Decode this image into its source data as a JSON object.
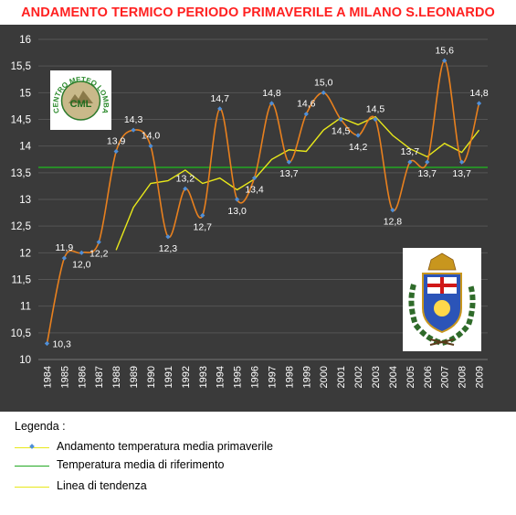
{
  "title": "ANDAMENTO TERMICO PERIODO PRIMAVERILE A MILANO S.LEONARDO",
  "logo": {
    "text_top": "CENTRO METEO LOMBARDO",
    "initials": "CML"
  },
  "colors": {
    "background": "#3a3a3a",
    "main_series": "#e8801e",
    "marker": "#4f8fd8",
    "reference": "#22a822",
    "trend": "#e8e81a",
    "title": "#ff2020"
  },
  "legend": {
    "title": "Legenda :",
    "items": [
      {
        "label": "Andamento temperatura media primaverile"
      },
      {
        "label": "Temperatura media di riferimento"
      },
      {
        "label": "Linea di tendenza"
      }
    ]
  },
  "chart_data": {
    "type": "line",
    "title": "ANDAMENTO TERMICO PERIODO PRIMAVERILE A MILANO S.LEONARDO",
    "xlabel": "",
    "ylabel": "",
    "ylim": [
      10,
      16
    ],
    "ytick_step": 0.5,
    "grid": true,
    "legend_position": "bottom",
    "categories": [
      "1984",
      "1985",
      "1986",
      "1987",
      "1988",
      "1989",
      "1990",
      "1991",
      "1992",
      "1993",
      "1994",
      "1995",
      "1996",
      "1997",
      "1998",
      "1999",
      "2000",
      "2001",
      "2002",
      "2003",
      "2004",
      "2005",
      "2006",
      "2007",
      "2008",
      "2009"
    ],
    "series": [
      {
        "name": "Andamento temperatura media primaverile",
        "values": [
          10.3,
          11.9,
          12.0,
          12.2,
          13.9,
          14.3,
          14.0,
          12.3,
          13.2,
          12.7,
          14.7,
          13.0,
          13.4,
          14.8,
          13.7,
          14.6,
          15.0,
          14.5,
          14.2,
          14.5,
          12.8,
          13.7,
          13.7,
          15.6,
          13.7,
          14.8
        ],
        "labels": [
          "10,3",
          "11,9",
          "12,0",
          "12,2",
          "13,9",
          "14,3",
          "14,0",
          "12,3",
          "13,2",
          "12,7",
          "14,7",
          "13,0",
          "13,4",
          "14,8",
          "13,7",
          "14,6",
          "15,0",
          "14,5",
          "14,2",
          "14,5",
          "12,8",
          "13,7",
          "13,7",
          "15,6",
          "13,7",
          "14,8"
        ]
      },
      {
        "name": "Temperatura media di riferimento",
        "values": [
          13.6,
          13.6,
          13.6,
          13.6,
          13.6,
          13.6,
          13.6,
          13.6,
          13.6,
          13.6,
          13.6,
          13.6,
          13.6,
          13.6,
          13.6,
          13.6,
          13.6,
          13.6,
          13.6,
          13.6,
          13.6,
          13.6,
          13.6,
          13.6,
          13.6,
          13.6
        ]
      },
      {
        "name": "Linea di tendenza",
        "values": [
          null,
          null,
          null,
          null,
          12.05,
          12.85,
          13.3,
          13.35,
          13.55,
          13.3,
          13.4,
          13.18,
          13.38,
          13.75,
          13.93,
          13.9,
          14.3,
          14.53,
          14.4,
          14.55,
          14.2,
          13.95,
          13.8,
          14.05,
          13.88,
          14.3
        ]
      }
    ]
  }
}
